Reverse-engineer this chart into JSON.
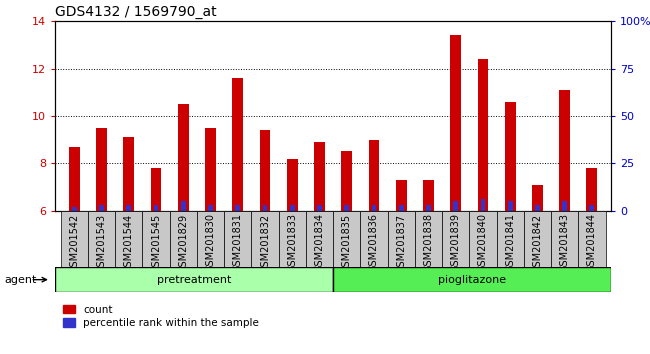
{
  "title": "GDS4132 / 1569790_at",
  "categories": [
    "GSM201542",
    "GSM201543",
    "GSM201544",
    "GSM201545",
    "GSM201829",
    "GSM201830",
    "GSM201831",
    "GSM201832",
    "GSM201833",
    "GSM201834",
    "GSM201835",
    "GSM201836",
    "GSM201837",
    "GSM201838",
    "GSM201839",
    "GSM201840",
    "GSM201841",
    "GSM201842",
    "GSM201843",
    "GSM201844"
  ],
  "count_values": [
    8.7,
    9.5,
    9.1,
    7.8,
    10.5,
    9.5,
    11.6,
    9.4,
    8.2,
    8.9,
    8.5,
    9.0,
    7.3,
    7.3,
    13.4,
    12.4,
    10.6,
    7.1,
    11.1,
    7.8
  ],
  "percentile_values": [
    2,
    3,
    3,
    3,
    5,
    3,
    3,
    3,
    3,
    3,
    3,
    3,
    3,
    3,
    5,
    6,
    5,
    3,
    5,
    3
  ],
  "ylim_left": [
    6,
    14
  ],
  "ylim_right": [
    0,
    100
  ],
  "yticks_left": [
    6,
    8,
    10,
    12,
    14
  ],
  "yticks_right": [
    0,
    25,
    50,
    75,
    100
  ],
  "ytick_labels_right": [
    "0",
    "25",
    "50",
    "75",
    "100%"
  ],
  "bar_color_red": "#cc0000",
  "bar_color_blue": "#3333cc",
  "group_labels_clean": [
    "pretreatment",
    "pioglitazone"
  ],
  "group_color_pre": "#aaffaa",
  "group_color_pio": "#55ee55",
  "agent_label": "agent",
  "legend_items": [
    {
      "label": "count",
      "color": "#cc0000"
    },
    {
      "label": "percentile rank within the sample",
      "color": "#3333cc"
    }
  ],
  "tick_color_left": "#cc0000",
  "tick_color_right": "#0000cc",
  "baseline": 6,
  "xtick_bg": "#cccccc"
}
